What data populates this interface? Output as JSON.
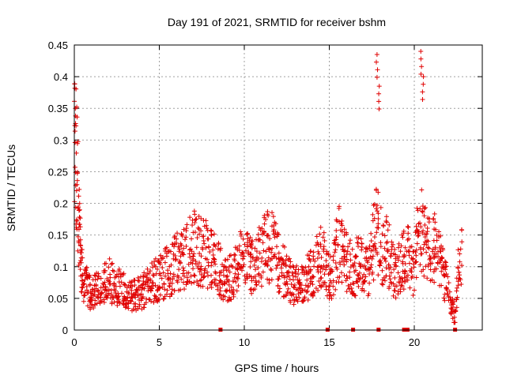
{
  "chart_data": {
    "type": "scatter",
    "title": "Day 191 of 2021, SRMTID for receiver bshm",
    "xlabel": "GPS time / hours",
    "ylabel": "SRMTID / TECUs",
    "xlim": [
      0,
      24
    ],
    "ylim": [
      0,
      0.45
    ],
    "xticks": [
      0,
      5,
      10,
      15,
      20
    ],
    "xtick_labels": [
      "0",
      "5",
      "10",
      "15",
      "20"
    ],
    "yticks": [
      0,
      0.05,
      0.1,
      0.15,
      0.2,
      0.25,
      0.3,
      0.35,
      0.4,
      0.45
    ],
    "ytick_labels": [
      "0",
      "0.05",
      "0.1",
      "0.15",
      "0.2",
      "0.25",
      "0.3",
      "0.35",
      "0.4",
      "0.45"
    ],
    "grid": true,
    "marker": "+",
    "color": "#e00000",
    "series": [
      {
        "name": "SRMTID",
        "description": "approximate trend of the dense scatter",
        "x": [
          0.0,
          0.1,
          0.2,
          0.3,
          0.4,
          0.5,
          0.7,
          0.9,
          1.0,
          1.2,
          1.4,
          1.6,
          1.8,
          2.0,
          2.2,
          2.4,
          2.6,
          2.8,
          3.0,
          3.2,
          3.4,
          3.6,
          3.8,
          4.0,
          4.2,
          4.4,
          4.6,
          4.8,
          5.0,
          5.2,
          5.4,
          5.6,
          5.8,
          6.0,
          6.2,
          6.4,
          6.6,
          6.8,
          7.0,
          7.2,
          7.4,
          7.6,
          7.8,
          8.0,
          8.2,
          8.4,
          8.6,
          8.8,
          9.0,
          9.2,
          9.4,
          9.6,
          9.8,
          10.0,
          10.2,
          10.4,
          10.6,
          10.8,
          11.0,
          11.2,
          11.4,
          11.6,
          11.8,
          12.0,
          12.2,
          12.4,
          12.6,
          12.8,
          13.0,
          13.2,
          13.4,
          13.6,
          13.8,
          14.0,
          14.2,
          14.4,
          14.6,
          14.8,
          15.0,
          15.2,
          15.4,
          15.6,
          15.8,
          16.0,
          16.2,
          16.4,
          16.6,
          16.8,
          17.0,
          17.2,
          17.4,
          17.6,
          17.8,
          18.0,
          18.2,
          18.4,
          18.6,
          18.8,
          19.0,
          19.2,
          19.4,
          19.6,
          19.8,
          20.0,
          20.2,
          20.4,
          20.6,
          20.8,
          21.0,
          21.2,
          21.4,
          21.6,
          21.8,
          22.0,
          22.2,
          22.4,
          22.6,
          22.8
        ],
        "values": [
          0.33,
          0.28,
          0.22,
          0.15,
          0.1,
          0.08,
          0.07,
          0.06,
          0.055,
          0.06,
          0.065,
          0.07,
          0.075,
          0.08,
          0.075,
          0.07,
          0.068,
          0.065,
          0.06,
          0.058,
          0.055,
          0.055,
          0.058,
          0.06,
          0.065,
          0.07,
          0.075,
          0.078,
          0.08,
          0.085,
          0.09,
          0.095,
          0.1,
          0.105,
          0.11,
          0.115,
          0.12,
          0.125,
          0.13,
          0.13,
          0.125,
          0.12,
          0.12,
          0.115,
          0.11,
          0.1,
          0.09,
          0.08,
          0.08,
          0.085,
          0.09,
          0.1,
          0.11,
          0.115,
          0.11,
          0.1,
          0.1,
          0.11,
          0.12,
          0.13,
          0.135,
          0.13,
          0.12,
          0.11,
          0.1,
          0.09,
          0.08,
          0.075,
          0.07,
          0.07,
          0.075,
          0.08,
          0.085,
          0.09,
          0.1,
          0.11,
          0.12,
          0.1,
          0.08,
          0.09,
          0.12,
          0.14,
          0.13,
          0.11,
          0.1,
          0.09,
          0.1,
          0.12,
          0.11,
          0.09,
          0.1,
          0.14,
          0.16,
          0.14,
          0.12,
          0.13,
          0.11,
          0.09,
          0.09,
          0.1,
          0.11,
          0.12,
          0.1,
          0.09,
          0.15,
          0.16,
          0.14,
          0.13,
          0.12,
          0.13,
          0.11,
          0.1,
          0.08,
          0.06,
          0.04,
          0.02,
          0.1,
          0.12
        ]
      }
    ],
    "spikes": [
      {
        "x": 0.05,
        "y": 0.35
      },
      {
        "x": 17.8,
        "y": 0.435
      },
      {
        "x": 17.9,
        "y": 0.385
      },
      {
        "x": 20.4,
        "y": 0.44
      },
      {
        "x": 20.5,
        "y": 0.4
      }
    ],
    "zero_points_x": [
      8.6,
      14.9,
      16.4,
      17.9,
      19.4,
      19.6,
      22.4
    ]
  }
}
